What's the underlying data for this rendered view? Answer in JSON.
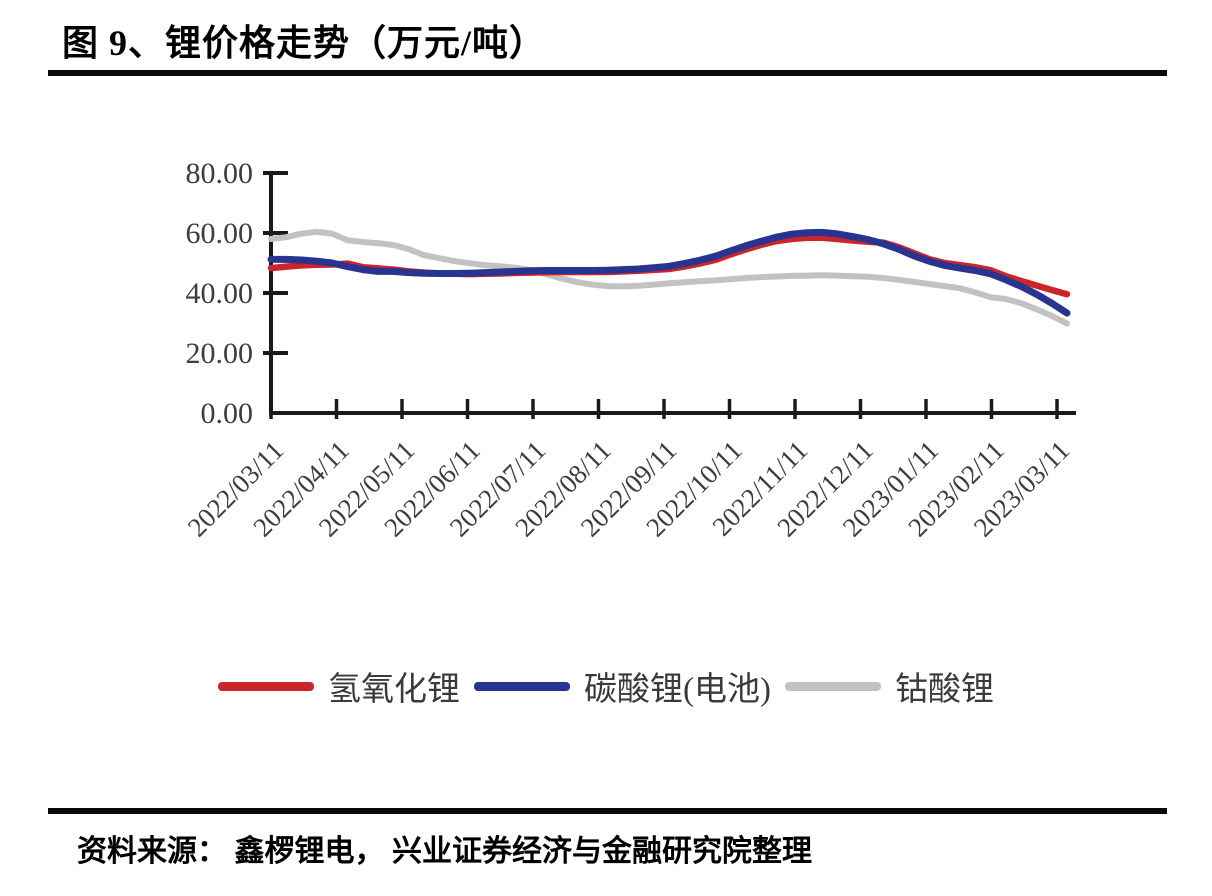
{
  "figure": {
    "title": "图 9、锂价格走势（万元/吨）",
    "source": "资料来源：  鑫椤锂电，  兴业证券经济与金融研究院整理"
  },
  "chart_data": {
    "type": "line",
    "title": "锂价格走势（万元/吨）",
    "xlabel": "",
    "ylabel": "",
    "ylim": [
      0,
      80
    ],
    "yticks": [
      0,
      20,
      40,
      60,
      80
    ],
    "ytick_labels": [
      "0.00",
      "20.00",
      "40.00",
      "60.00",
      "80.00"
    ],
    "xtick_labels": [
      "2022/03/11",
      "2022/04/11",
      "2022/05/11",
      "2022/06/11",
      "2022/07/11",
      "2022/08/11",
      "2022/09/11",
      "2022/10/11",
      "2022/11/11",
      "2022/12/11",
      "2023/01/11",
      "2023/02/11",
      "2023/03/11"
    ],
    "x_sampling": "weekly points from 2022/03/11 to 2023/03/11, evenly spaced",
    "grid": false,
    "legend_position": "bottom",
    "axis_color": "#1a1a1a",
    "label_color": "#3d3d3d",
    "series": [
      {
        "key": "lithium-cobaltate",
        "name": "钴酸锂",
        "color": "#C2C2C2",
        "stroke_width": 6,
        "values": [
          58.0,
          58.6,
          59.8,
          60.4,
          59.8,
          57.6,
          57.0,
          56.6,
          56.0,
          54.6,
          52.6,
          51.6,
          50.6,
          49.9,
          49.3,
          48.9,
          48.4,
          47.6,
          46.2,
          44.8,
          43.6,
          42.8,
          42.3,
          42.2,
          42.4,
          42.8,
          43.2,
          43.6,
          43.9,
          44.2,
          44.6,
          45.0,
          45.3,
          45.5,
          45.7,
          45.8,
          45.9,
          45.8,
          45.6,
          45.4,
          45.0,
          44.4,
          43.7,
          43.0,
          42.3,
          41.6,
          40.2,
          38.6,
          38.0,
          36.6,
          34.6,
          32.4,
          29.8
        ]
      },
      {
        "key": "lithium-hydroxide",
        "name": "氢氧化锂",
        "color": "#CC2529",
        "stroke_width": 6.5,
        "values": [
          48.3,
          48.8,
          49.2,
          49.4,
          49.5,
          49.8,
          48.6,
          48.2,
          47.8,
          47.2,
          46.8,
          46.5,
          46.4,
          46.3,
          46.4,
          46.5,
          46.7,
          46.8,
          46.9,
          47.0,
          47.0,
          47.0,
          47.0,
          47.2,
          47.4,
          47.7,
          48.0,
          48.8,
          49.8,
          51.0,
          52.8,
          54.5,
          56.0,
          57.3,
          58.0,
          58.4,
          58.4,
          58.0,
          57.5,
          57.1,
          56.8,
          55.3,
          53.3,
          51.3,
          50.0,
          49.3,
          48.6,
          47.6,
          45.6,
          44.0,
          42.5,
          41.0,
          39.6
        ]
      },
      {
        "key": "lithium-carbonate-battery",
        "name": "碳酸锂(电池)",
        "color": "#28348F",
        "stroke_width": 7,
        "values": [
          51.2,
          51.2,
          51.0,
          50.6,
          50.0,
          48.8,
          47.8,
          47.2,
          47.2,
          46.8,
          46.6,
          46.5,
          46.5,
          46.6,
          46.8,
          47.0,
          47.2,
          47.4,
          47.5,
          47.5,
          47.5,
          47.5,
          47.6,
          47.8,
          48.0,
          48.4,
          48.9,
          49.8,
          50.9,
          52.2,
          54.0,
          55.7,
          57.2,
          58.6,
          59.6,
          60.1,
          60.2,
          59.7,
          58.8,
          57.8,
          56.4,
          54.6,
          52.4,
          50.6,
          49.2,
          48.3,
          47.5,
          46.4,
          44.4,
          42.2,
          39.6,
          36.6,
          33.3
        ]
      }
    ]
  }
}
